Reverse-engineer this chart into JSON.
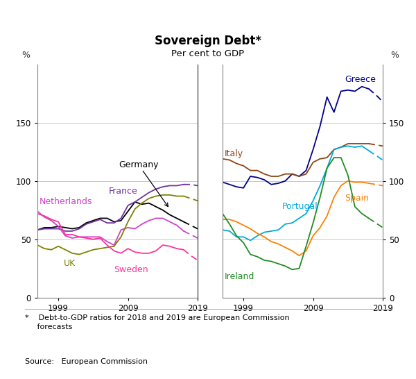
{
  "title": "Sovereign Debt*",
  "subtitle": "Per cent to GDP",
  "footnote": "*    Debt-to-GDP ratios for 2018 and 2019 are European Commission\n     forecasts",
  "source": "Source:   European Commission",
  "ylim": [
    0,
    200
  ],
  "yticks": [
    0,
    50,
    100,
    150
  ],
  "left_panel": {
    "xmin": 1996,
    "xmax": 2019,
    "xticks": [
      1999,
      2009,
      2019
    ],
    "series": {
      "Germany": {
        "color": "#000000",
        "years_solid": [
          1996,
          1997,
          1998,
          1999,
          2000,
          2001,
          2002,
          2003,
          2004,
          2005,
          2006,
          2007,
          2008,
          2009,
          2010,
          2011,
          2012,
          2013,
          2014,
          2015,
          2016,
          2017
        ],
        "values_solid": [
          58,
          60,
          60,
          61,
          60,
          59,
          60,
          64,
          66,
          68,
          68,
          65,
          66,
          74,
          82,
          80,
          81,
          78,
          75,
          71,
          68,
          65
        ],
        "years_dash": [
          2017,
          2018,
          2019
        ],
        "values_dash": [
          65,
          62,
          59
        ]
      },
      "France": {
        "color": "#7030a0",
        "years_solid": [
          1996,
          1997,
          1998,
          1999,
          2000,
          2001,
          2002,
          2003,
          2004,
          2005,
          2006,
          2007,
          2008,
          2009,
          2010,
          2011,
          2012,
          2013,
          2014,
          2015,
          2016,
          2017
        ],
        "values_solid": [
          58,
          59,
          59,
          59,
          57,
          57,
          59,
          63,
          65,
          67,
          64,
          64,
          68,
          79,
          82,
          86,
          90,
          93,
          95,
          96,
          96,
          97
        ],
        "years_dash": [
          2017,
          2018,
          2019
        ],
        "values_dash": [
          97,
          97,
          96
        ]
      },
      "Netherlands": {
        "color": "#cc44cc",
        "years_solid": [
          1996,
          1997,
          1998,
          1999,
          2000,
          2001,
          2002,
          2003,
          2004,
          2005,
          2006,
          2007,
          2008,
          2009,
          2010,
          2011,
          2012,
          2013,
          2014,
          2015,
          2016,
          2017
        ],
        "values_solid": [
          74,
          69,
          66,
          61,
          53,
          51,
          52,
          52,
          52,
          52,
          48,
          45,
          58,
          60,
          59,
          63,
          66,
          68,
          68,
          65,
          62,
          57
        ],
        "years_dash": [
          2017,
          2018,
          2019
        ],
        "values_dash": [
          57,
          54,
          51
        ]
      },
      "UK": {
        "color": "#808000",
        "years_solid": [
          1996,
          1997,
          1998,
          1999,
          2000,
          2001,
          2002,
          2003,
          2004,
          2005,
          2006,
          2007,
          2008,
          2009,
          2010,
          2011,
          2012,
          2013,
          2014,
          2015,
          2016,
          2017
        ],
        "values_solid": [
          45,
          42,
          41,
          44,
          41,
          38,
          37,
          39,
          41,
          42,
          43,
          44,
          52,
          65,
          76,
          81,
          85,
          87,
          88,
          88,
          87,
          87
        ],
        "years_dash": [
          2017,
          2018,
          2019
        ],
        "values_dash": [
          87,
          85,
          83
        ]
      },
      "Sweden": {
        "color": "#ff3399",
        "years_solid": [
          1996,
          1997,
          1998,
          1999,
          2000,
          2001,
          2002,
          2003,
          2004,
          2005,
          2006,
          2007,
          2008,
          2009,
          2010,
          2011,
          2012,
          2013,
          2014,
          2015,
          2016,
          2017
        ],
        "values_solid": [
          72,
          70,
          67,
          65,
          54,
          54,
          52,
          51,
          50,
          51,
          45,
          40,
          38,
          42,
          39,
          38,
          38,
          40,
          45,
          44,
          42,
          41
        ],
        "years_dash": [
          2017,
          2018,
          2019
        ],
        "values_dash": [
          41,
          36,
          32
        ]
      }
    }
  },
  "right_panel": {
    "xmin": 1996,
    "xmax": 2019,
    "xticks": [
      1999,
      2009,
      2019
    ],
    "series": {
      "Greece": {
        "color": "#00008b",
        "years_solid": [
          1996,
          1997,
          1998,
          1999,
          2000,
          2001,
          2002,
          2003,
          2004,
          2005,
          2006,
          2007,
          2008,
          2009,
          2010,
          2011,
          2012,
          2013,
          2014,
          2015,
          2016,
          2017
        ],
        "values_solid": [
          99,
          97,
          95,
          94,
          104,
          103,
          101,
          97,
          98,
          100,
          106,
          104,
          109,
          127,
          147,
          172,
          159,
          177,
          178,
          177,
          181,
          179
        ],
        "years_dash": [
          2017,
          2018,
          2019
        ],
        "values_dash": [
          179,
          174,
          168
        ]
      },
      "Italy": {
        "color": "#8b4513",
        "years_solid": [
          1996,
          1997,
          1998,
          1999,
          2000,
          2001,
          2002,
          2003,
          2004,
          2005,
          2006,
          2007,
          2008,
          2009,
          2010,
          2011,
          2012,
          2013,
          2014,
          2015,
          2016,
          2017
        ],
        "values_solid": [
          119,
          118,
          115,
          113,
          109,
          109,
          106,
          104,
          104,
          106,
          106,
          104,
          106,
          116,
          119,
          120,
          127,
          129,
          132,
          132,
          132,
          132
        ],
        "years_dash": [
          2017,
          2018,
          2019
        ],
        "values_dash": [
          132,
          131,
          130
        ]
      },
      "Portugal": {
        "color": "#00aadd",
        "years_solid": [
          1996,
          1997,
          1998,
          1999,
          2000,
          2001,
          2002,
          2003,
          2004,
          2005,
          2006,
          2007,
          2008,
          2009,
          2010,
          2011,
          2012,
          2013,
          2014,
          2015,
          2016,
          2017
        ],
        "values_solid": [
          58,
          57,
          52,
          52,
          49,
          53,
          56,
          57,
          58,
          63,
          64,
          68,
          72,
          83,
          96,
          111,
          127,
          129,
          130,
          129,
          130,
          126
        ],
        "years_dash": [
          2017,
          2018,
          2019
        ],
        "values_dash": [
          126,
          122,
          118
        ]
      },
      "Spain": {
        "color": "#ff7f00",
        "years_solid": [
          1996,
          1997,
          1998,
          1999,
          2000,
          2001,
          2002,
          2003,
          2004,
          2005,
          2006,
          2007,
          2008,
          2009,
          2010,
          2011,
          2012,
          2013,
          2014,
          2015,
          2016,
          2017
        ],
        "values_solid": [
          67,
          67,
          65,
          62,
          59,
          55,
          52,
          48,
          46,
          43,
          40,
          36,
          40,
          53,
          60,
          70,
          86,
          96,
          100,
          99,
          99,
          98
        ],
        "years_dash": [
          2017,
          2018,
          2019
        ],
        "values_dash": [
          98,
          97,
          96
        ]
      },
      "Ireland": {
        "color": "#228b22",
        "years_solid": [
          1996,
          1997,
          1998,
          1999,
          2000,
          2001,
          2002,
          2003,
          2004,
          2005,
          2006,
          2007,
          2008,
          2009,
          2010,
          2011,
          2012,
          2013,
          2014,
          2015,
          2016,
          2017
        ],
        "values_solid": [
          72,
          63,
          53,
          47,
          37,
          35,
          32,
          31,
          29,
          27,
          24,
          25,
          44,
          64,
          86,
          111,
          120,
          120,
          105,
          78,
          72,
          68
        ],
        "years_dash": [
          2017,
          2018,
          2019
        ],
        "values_dash": [
          68,
          64,
          60
        ]
      }
    }
  },
  "background_color": "#ffffff",
  "grid_color": "#c8c8c8"
}
